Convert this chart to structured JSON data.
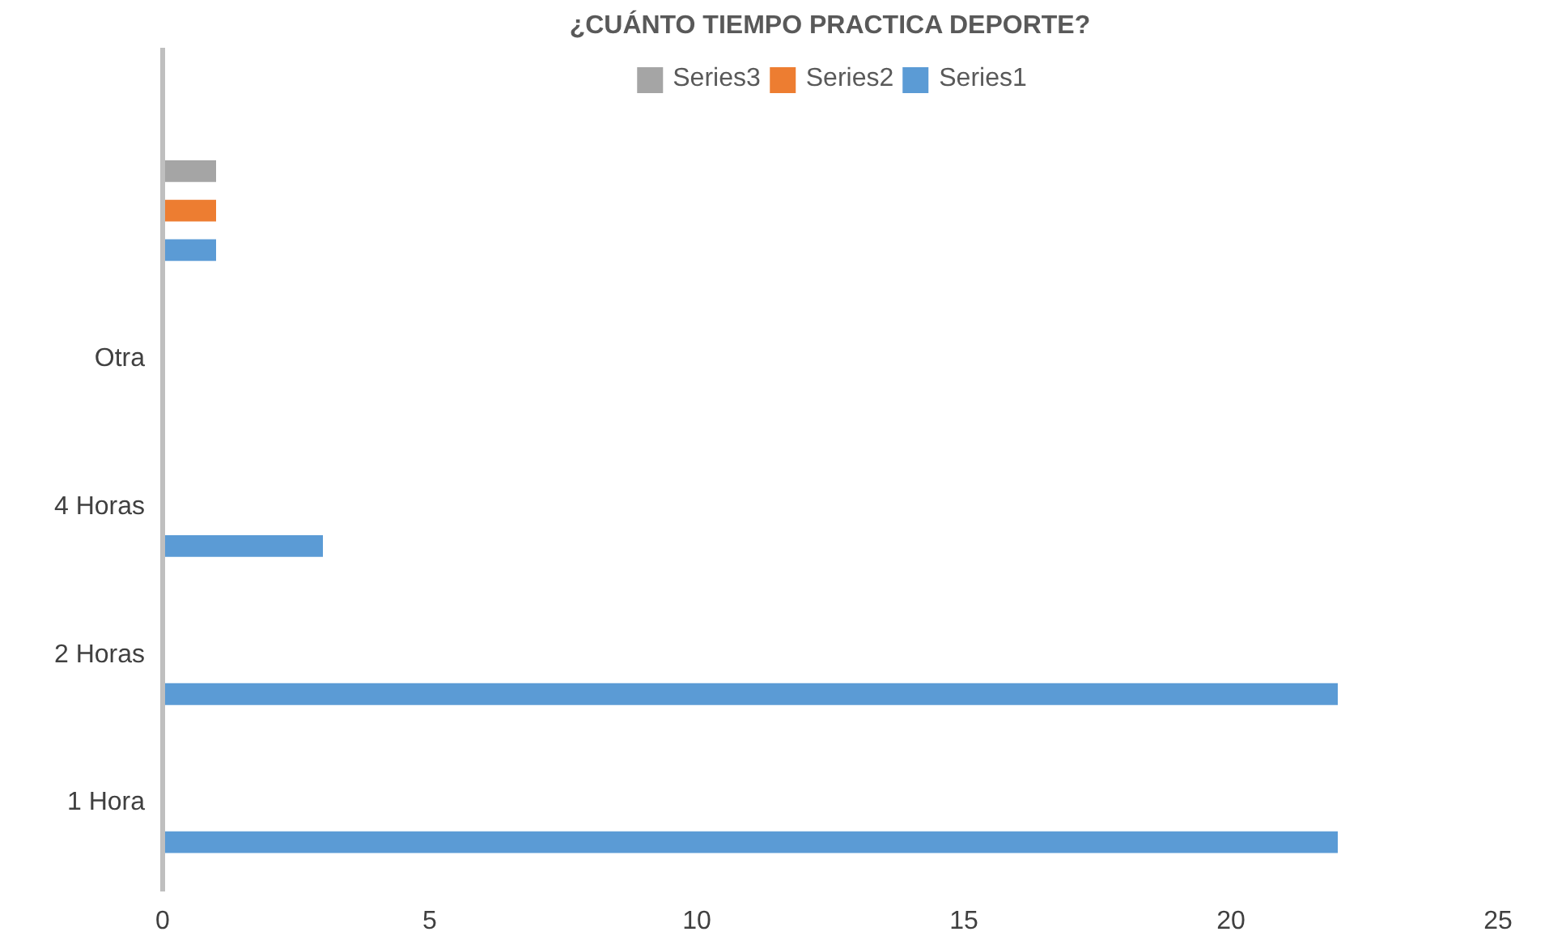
{
  "chart_data": {
    "type": "bar",
    "orientation": "horizontal",
    "title": "¿CUÁNTO TIEMPO PRACTICA DEPORTE?",
    "categories": [
      null,
      "Otra",
      "4 Horas",
      "2 Horas",
      "1 Hora"
    ],
    "series": [
      {
        "name": "Series1",
        "color": "#5b9bd5",
        "values": [
          1,
          null,
          3,
          22,
          22
        ]
      },
      {
        "name": "Series2",
        "color": "#ed7d31",
        "values": [
          1,
          null,
          null,
          null,
          null
        ]
      },
      {
        "name": "Series3",
        "color": "#a5a5a5",
        "values": [
          1,
          null,
          null,
          null,
          null
        ]
      }
    ],
    "xlim": [
      0,
      25
    ],
    "xticks": [
      0,
      5,
      10,
      15,
      20,
      25
    ],
    "grid": false,
    "legend": "top"
  }
}
